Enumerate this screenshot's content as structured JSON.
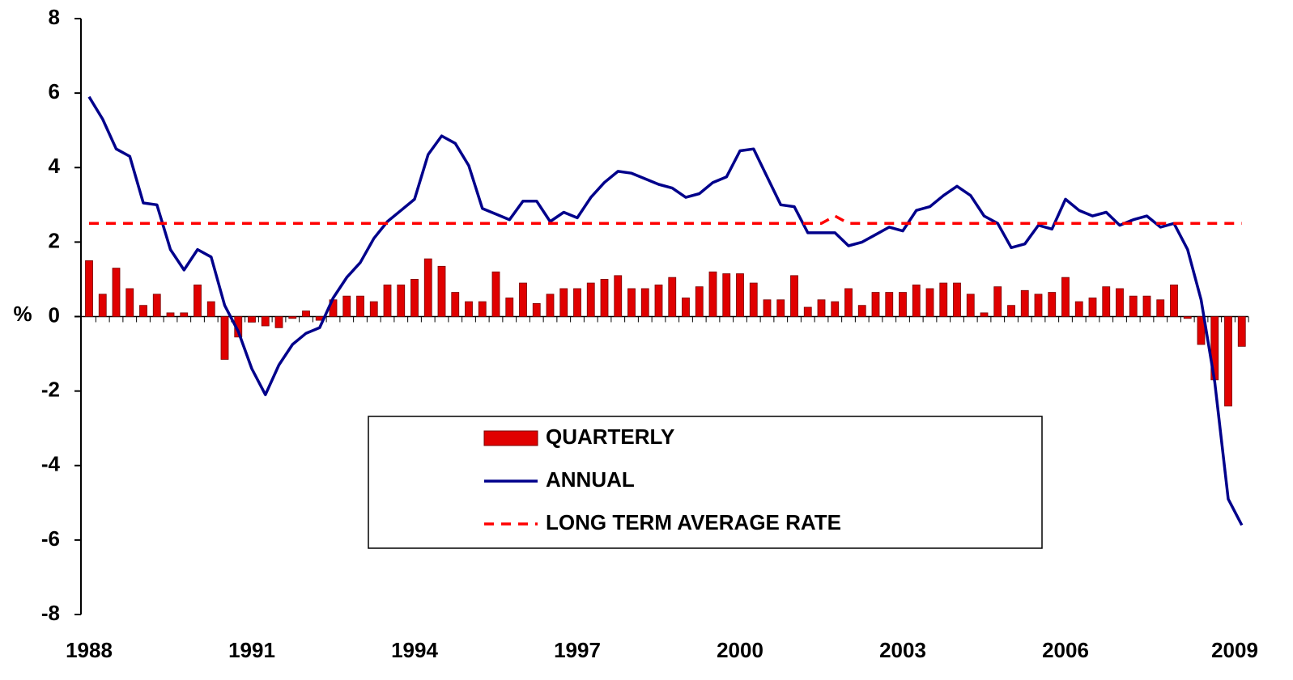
{
  "chart_data": {
    "type": "bar_line",
    "y_label": "%",
    "categories": [
      "1988",
      null,
      null,
      null,
      null,
      null,
      null,
      null,
      null,
      null,
      null,
      null,
      "1991",
      null,
      null,
      null,
      null,
      null,
      null,
      null,
      null,
      null,
      null,
      null,
      "1994",
      null,
      null,
      null,
      null,
      null,
      null,
      null,
      null,
      null,
      null,
      null,
      "1997",
      null,
      null,
      null,
      null,
      null,
      null,
      null,
      null,
      null,
      null,
      null,
      "2000",
      null,
      null,
      null,
      null,
      null,
      null,
      null,
      null,
      null,
      null,
      null,
      "2003",
      null,
      null,
      null,
      null,
      null,
      null,
      null,
      null,
      null,
      null,
      null,
      "2006",
      null,
      null,
      null,
      null,
      null,
      null,
      null,
      null,
      null,
      null,
      null,
      "2009",
      null
    ],
    "series": [
      {
        "name": "QUARTERLY",
        "kind": "bar",
        "color": "#e00000",
        "values": [
          1.5,
          0.6,
          1.3,
          0.75,
          0.3,
          0.6,
          0.1,
          0.1,
          0.85,
          0.4,
          -1.15,
          -0.55,
          -0.15,
          -0.25,
          -0.3,
          -0.05,
          0.15,
          -0.1,
          0.45,
          0.55,
          0.55,
          0.4,
          0.85,
          0.85,
          1.0,
          1.55,
          1.35,
          0.65,
          0.4,
          0.4,
          1.2,
          0.5,
          0.9,
          0.35,
          0.6,
          0.75,
          0.75,
          0.9,
          1.0,
          1.1,
          0.75,
          0.75,
          0.85,
          1.05,
          0.5,
          0.8,
          1.2,
          1.15,
          1.15,
          0.9,
          0.45,
          0.45,
          1.1,
          0.25,
          0.45,
          0.4,
          0.75,
          0.3,
          0.65,
          0.65,
          0.65,
          0.85,
          0.75,
          0.9,
          0.9,
          0.6,
          0.1,
          0.8,
          0.3,
          0.7,
          0.6,
          0.65,
          1.05,
          0.4,
          0.5,
          0.8,
          0.75,
          0.55,
          0.55,
          0.45,
          0.85,
          -0.05,
          -0.75,
          -1.7,
          -2.4,
          -0.8
        ]
      },
      {
        "name": "ANNUAL",
        "kind": "line",
        "color": "#00008b",
        "values": [
          5.9,
          5.3,
          4.5,
          4.3,
          3.05,
          3.0,
          1.8,
          1.25,
          1.8,
          1.6,
          0.3,
          -0.4,
          -1.4,
          -2.1,
          -1.3,
          -0.75,
          -0.45,
          -0.3,
          0.5,
          1.05,
          1.45,
          2.1,
          2.55,
          2.85,
          3.15,
          4.35,
          4.85,
          4.65,
          4.05,
          2.9,
          2.75,
          2.6,
          3.1,
          3.1,
          2.55,
          2.8,
          2.65,
          3.2,
          3.6,
          3.9,
          3.85,
          3.7,
          3.55,
          3.45,
          3.2,
          3.3,
          3.6,
          3.75,
          4.45,
          4.5,
          3.75,
          3.0,
          2.95,
          2.25,
          2.25,
          2.25,
          1.9,
          2.0,
          2.2,
          2.4,
          2.3,
          2.85,
          2.95,
          3.25,
          3.5,
          3.25,
          2.7,
          2.5,
          1.85,
          1.95,
          2.45,
          2.35,
          3.15,
          2.85,
          2.7,
          2.8,
          2.45,
          2.6,
          2.7,
          2.4,
          2.5,
          1.8,
          0.45,
          -1.75,
          -4.9,
          -5.6
        ]
      },
      {
        "name": "LONG TERM AVERAGE RATE",
        "kind": "dashed",
        "color": "#ff0000",
        "values": [
          2.5,
          2.5,
          2.5,
          2.5,
          2.5,
          2.5,
          2.5,
          2.5,
          2.5,
          2.5,
          2.5,
          2.5,
          2.5,
          2.5,
          2.5,
          2.5,
          2.5,
          2.5,
          2.5,
          2.5,
          2.5,
          2.5,
          2.5,
          2.5,
          2.5,
          2.5,
          2.5,
          2.5,
          2.5,
          2.5,
          2.5,
          2.5,
          2.5,
          2.5,
          2.5,
          2.5,
          2.5,
          2.5,
          2.5,
          2.5,
          2.5,
          2.5,
          2.5,
          2.5,
          2.5,
          2.5,
          2.5,
          2.5,
          2.5,
          2.5,
          2.5,
          2.5,
          2.5,
          2.5,
          2.5,
          2.7,
          2.5,
          2.5,
          2.5,
          2.5,
          2.5,
          2.5,
          2.5,
          2.5,
          2.5,
          2.5,
          2.5,
          2.5,
          2.5,
          2.5,
          2.5,
          2.5,
          2.5,
          2.5,
          2.5,
          2.5,
          2.5,
          2.5,
          2.5,
          2.5,
          2.5,
          2.5,
          2.5,
          2.5,
          2.5,
          2.5
        ]
      }
    ],
    "ylim": [
      -8,
      8
    ],
    "yticks": [
      -8,
      -6,
      -4,
      -2,
      0,
      2,
      4,
      6,
      8
    ]
  }
}
